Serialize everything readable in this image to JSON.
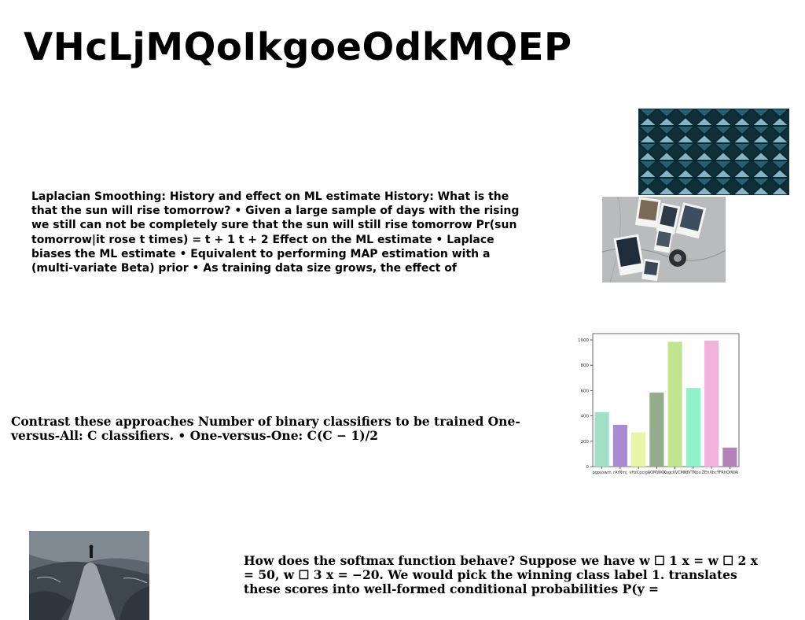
{
  "page": {
    "title": "VHcLjMQoIkgoeOdkMQEP"
  },
  "paragraphs": {
    "laplacian": "Laplacian Smoothing: History and effect on ML estimate History: What is the that the sun will rise tomorrow? • Given a large sample of days with the rising we still can not be completely sure that the sun will still rise tomorrow Pr(sun tomorrow|it rose t times) = t + 1 t + 2 Effect on the ML estimate • Laplace biases the ML estimate • Equivalent to performing MAP estimation with a (multi-variate Beta) prior • As training data size grows, the effect of",
    "contrast": "Contrast these approaches Number of binary classifiers to be trained One-versus-All: C classifiers. • One-versus-One: C(C − 1)/2",
    "softmax": "How does the softmax function behave? Suppose we have w ☐ 1 x = w ☐ 2 x = 50, w ☐ 3 x = −20. We would pick the winning class label 1. translates these scores into well-formed conditional probabilities P(y ="
  },
  "images": {
    "architecture": "architecture-photo",
    "polaroids": "polaroids-photo",
    "rocky_landscape": "rocky-landscape-photo"
  },
  "chart_data": {
    "type": "bar",
    "categories": [
      "pgpvswm",
      "rArNmj",
      "vHzCpcig",
      "AOMWKX",
      "KogckVCMK",
      "dVTNpu",
      "ZEnXbcYF",
      "RhQtWAi"
    ],
    "values": [
      430,
      330,
      270,
      585,
      985,
      620,
      995,
      150
    ],
    "colors": [
      "#a3dfc6",
      "#a98bd3",
      "#e8f5a6",
      "#93ad8c",
      "#c0e58e",
      "#8ef2c9",
      "#f2b2dd",
      "#b581bb"
    ],
    "yticks": [
      0,
      200,
      400,
      600,
      800,
      1000
    ],
    "ylim": [
      0,
      1050
    ]
  }
}
